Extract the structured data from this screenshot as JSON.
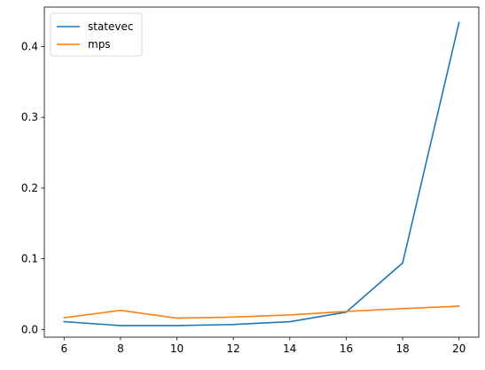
{
  "chart_data": {
    "type": "line",
    "title": "",
    "xlabel": "",
    "ylabel": "",
    "x": [
      6,
      8,
      10,
      12,
      14,
      16,
      18,
      20
    ],
    "xlim": [
      5.3,
      20.7
    ],
    "ylim": [
      -0.0109,
      0.4558
    ],
    "xticks": [
      6,
      8,
      10,
      12,
      14,
      16,
      18,
      20
    ],
    "yticks": [
      0.0,
      0.1,
      0.2,
      0.3,
      0.4
    ],
    "ytick_labels": [
      "0.0",
      "0.1",
      "0.2",
      "0.3",
      "0.4"
    ],
    "grid": false,
    "legend_position": "top-left",
    "series": [
      {
        "name": "statevec",
        "color": "#1f77b4",
        "values": [
          0.011,
          0.0055,
          0.0055,
          0.007,
          0.011,
          0.0245,
          0.094,
          0.434
        ]
      },
      {
        "name": "mps",
        "color": "#ff7f0e",
        "values": [
          0.0165,
          0.027,
          0.016,
          0.0175,
          0.0205,
          0.0255,
          0.0295,
          0.033
        ]
      }
    ]
  }
}
